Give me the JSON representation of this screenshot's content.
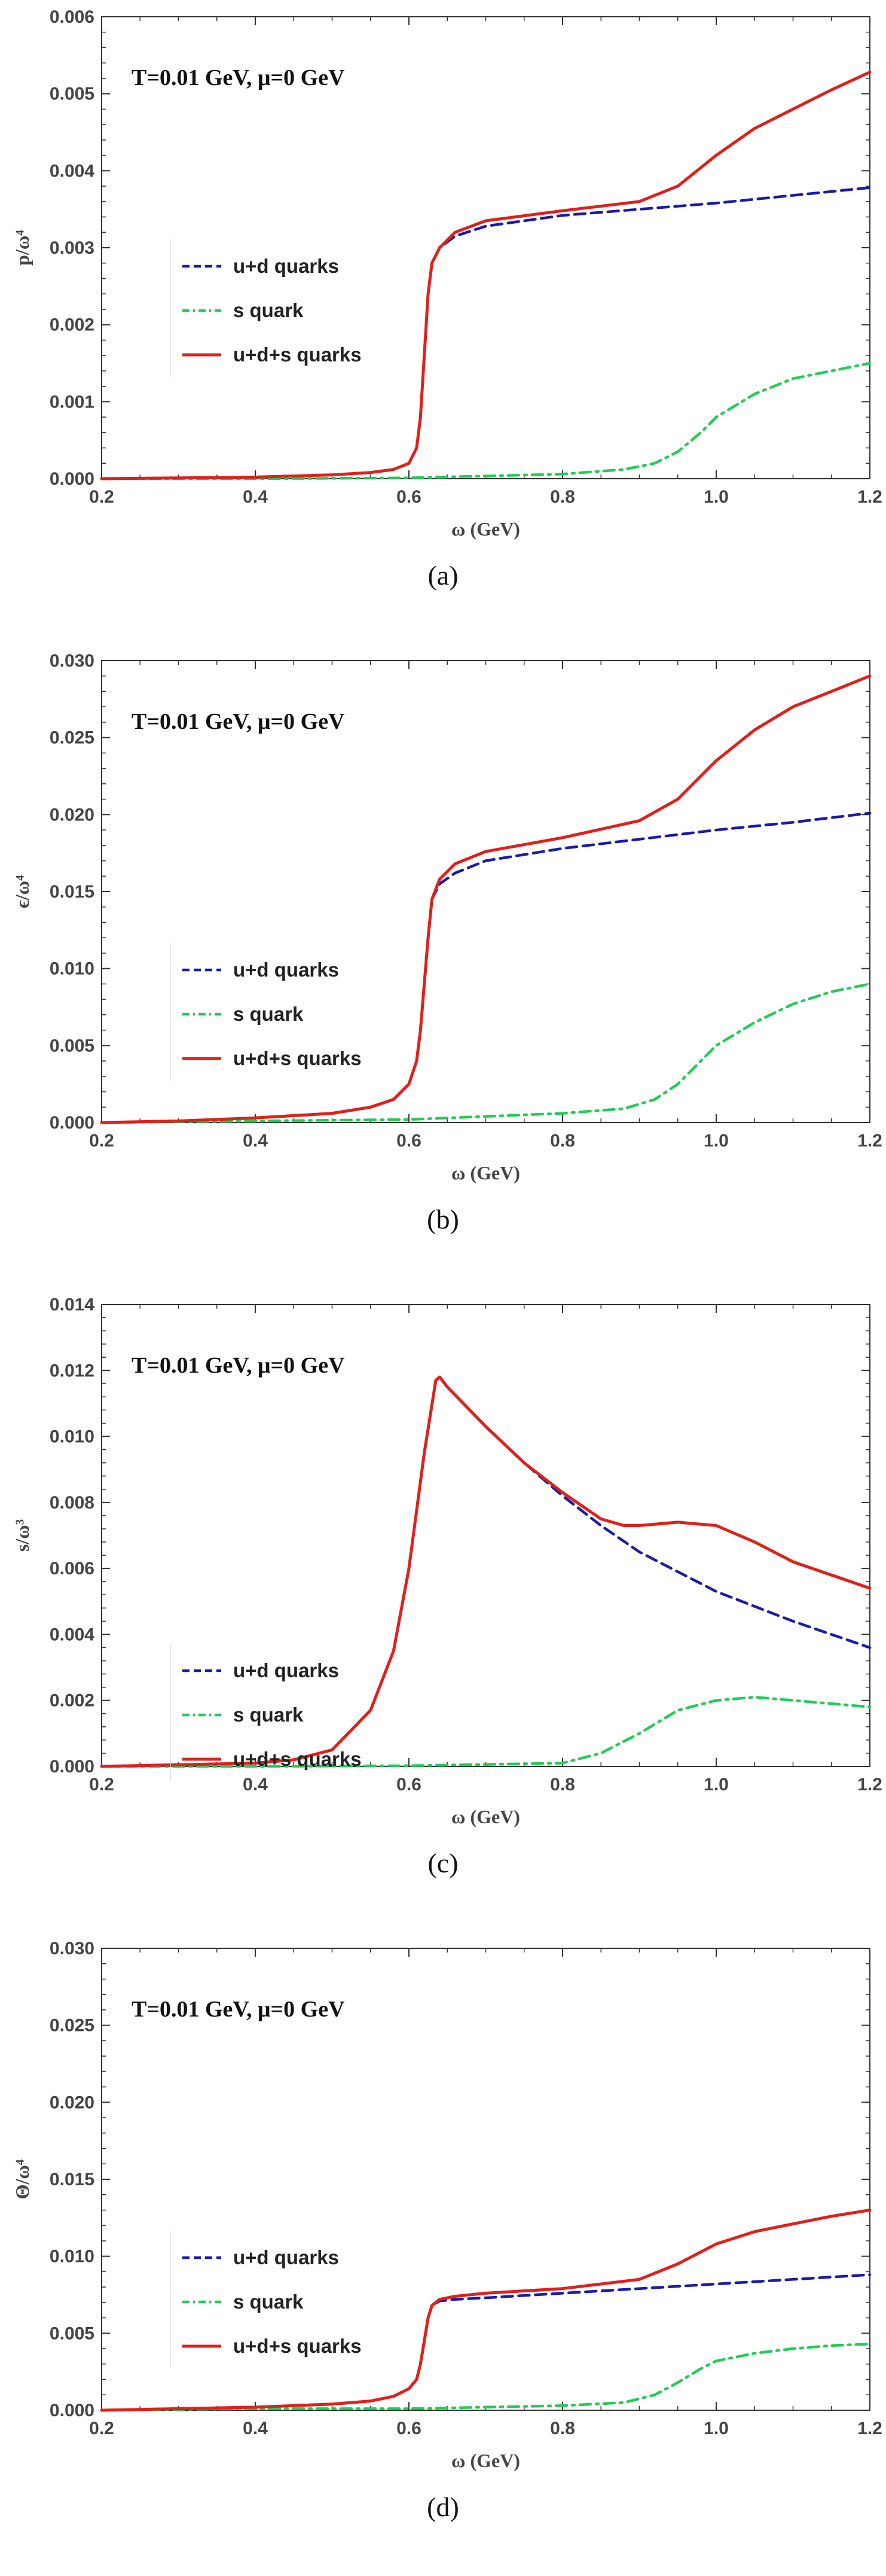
{
  "charts": [
    {
      "chart_data": {
        "type": "line",
        "title": "",
        "annotation": "T=0.01 GeV, μ=0 GeV",
        "xlabel": "ω (GeV)",
        "ylabel": "p/ω⁴",
        "xlim": [
          0.2,
          1.2
        ],
        "ylim": [
          0,
          0.006
        ],
        "xticks": [
          "0.2",
          "0.4",
          "0.6",
          "0.8",
          "1.0",
          "1.2"
        ],
        "yticks": [
          "0.000",
          "0.001",
          "0.002",
          "0.003",
          "0.004",
          "0.005",
          "0.006"
        ],
        "grid": false,
        "legend": "center-left",
        "caption": "(a)",
        "series": [
          {
            "name": "u+d quarks",
            "color": "#1a1aa8",
            "style": "dashed",
            "x": [
              0.2,
              0.3,
              0.4,
              0.5,
              0.55,
              0.58,
              0.6,
              0.61,
              0.615,
              0.62,
              0.625,
              0.63,
              0.64,
              0.66,
              0.7,
              0.8,
              0.9,
              1.0,
              1.1,
              1.2
            ],
            "y": [
              0.0,
              1e-05,
              2e-05,
              5e-05,
              8e-05,
              0.00012,
              0.0002,
              0.0004,
              0.0008,
              0.0016,
              0.0024,
              0.0028,
              0.003,
              0.00315,
              0.00328,
              0.00342,
              0.0035,
              0.00358,
              0.00368,
              0.00378
            ]
          },
          {
            "name": "s quark",
            "color": "#22cc55",
            "style": "dashdot",
            "x": [
              0.2,
              0.4,
              0.6,
              0.8,
              0.88,
              0.92,
              0.95,
              0.98,
              1.0,
              1.05,
              1.1,
              1.15,
              1.2
            ],
            "y": [
              0.0,
              0.0,
              1e-05,
              6e-05,
              0.00012,
              0.0002,
              0.00035,
              0.0006,
              0.0008,
              0.0011,
              0.0013,
              0.0014,
              0.0015
            ]
          },
          {
            "name": "u+d+s quarks",
            "color": "#e0201a",
            "style": "solid",
            "x": [
              0.2,
              0.3,
              0.4,
              0.5,
              0.55,
              0.58,
              0.6,
              0.61,
              0.615,
              0.62,
              0.625,
              0.63,
              0.64,
              0.66,
              0.7,
              0.8,
              0.9,
              0.95,
              1.0,
              1.05,
              1.1,
              1.15,
              1.2
            ],
            "y": [
              0.0,
              1e-05,
              2e-05,
              5e-05,
              8e-05,
              0.00012,
              0.0002,
              0.0004,
              0.0008,
              0.0016,
              0.0024,
              0.0028,
              0.003,
              0.0032,
              0.00335,
              0.00348,
              0.0036,
              0.0038,
              0.0042,
              0.00455,
              0.0048,
              0.00505,
              0.00528
            ]
          }
        ]
      }
    },
    {
      "chart_data": {
        "type": "line",
        "title": "",
        "annotation": "T=0.01 GeV, μ=0 GeV",
        "xlabel": "ω (GeV)",
        "ylabel": "ϵ/ω⁴",
        "xlim": [
          0.2,
          1.2
        ],
        "ylim": [
          0,
          0.03
        ],
        "xticks": [
          "0.2",
          "0.4",
          "0.6",
          "0.8",
          "1.0",
          "1.2"
        ],
        "yticks": [
          "0.000",
          "0.005",
          "0.010",
          "0.015",
          "0.020",
          "0.025",
          "0.030"
        ],
        "grid": false,
        "legend": "center-left",
        "caption": "(b)",
        "series": [
          {
            "name": "u+d quarks",
            "color": "#1a1aa8",
            "style": "dashed",
            "x": [
              0.2,
              0.3,
              0.4,
              0.5,
              0.55,
              0.58,
              0.6,
              0.61,
              0.615,
              0.62,
              0.625,
              0.63,
              0.64,
              0.66,
              0.7,
              0.8,
              0.9,
              1.0,
              1.1,
              1.2
            ],
            "y": [
              0.0,
              0.0001,
              0.0003,
              0.0006,
              0.001,
              0.0015,
              0.0025,
              0.004,
              0.006,
              0.009,
              0.012,
              0.0145,
              0.0155,
              0.0162,
              0.017,
              0.0178,
              0.0184,
              0.019,
              0.0195,
              0.0201
            ]
          },
          {
            "name": "s quark",
            "color": "#22cc55",
            "style": "dashdot",
            "x": [
              0.2,
              0.4,
              0.6,
              0.8,
              0.88,
              0.92,
              0.95,
              0.98,
              1.0,
              1.05,
              1.1,
              1.15,
              1.2
            ],
            "y": [
              0.0,
              0.0001,
              0.0002,
              0.0006,
              0.0009,
              0.0015,
              0.0025,
              0.004,
              0.005,
              0.0065,
              0.0077,
              0.0085,
              0.009
            ]
          },
          {
            "name": "u+d+s quarks",
            "color": "#e0201a",
            "style": "solid",
            "x": [
              0.2,
              0.3,
              0.4,
              0.5,
              0.55,
              0.58,
              0.6,
              0.61,
              0.615,
              0.62,
              0.625,
              0.63,
              0.64,
              0.66,
              0.7,
              0.8,
              0.9,
              0.95,
              1.0,
              1.05,
              1.1,
              1.15,
              1.2
            ],
            "y": [
              0.0,
              0.0001,
              0.0003,
              0.0006,
              0.001,
              0.0015,
              0.0025,
              0.004,
              0.006,
              0.009,
              0.012,
              0.0145,
              0.0158,
              0.0168,
              0.0176,
              0.0185,
              0.0196,
              0.021,
              0.0235,
              0.0255,
              0.027,
              0.028,
              0.029
            ]
          }
        ]
      }
    },
    {
      "chart_data": {
        "type": "line",
        "title": "",
        "annotation": "T=0.01 GeV, μ=0 GeV",
        "xlabel": "ω (GeV)",
        "ylabel": "s/ω³",
        "xlim": [
          0.2,
          1.2
        ],
        "ylim": [
          0,
          0.014
        ],
        "xticks": [
          "0.2",
          "0.4",
          "0.6",
          "0.8",
          "1.0",
          "1.2"
        ],
        "yticks": [
          "0.000",
          "0.002",
          "0.004",
          "0.006",
          "0.008",
          "0.010",
          "0.012",
          "0.014"
        ],
        "grid": false,
        "legend": "center-left",
        "caption": "(c)",
        "series": [
          {
            "name": "u+d quarks",
            "color": "#1a1aa8",
            "style": "dashed",
            "x": [
              0.2,
              0.3,
              0.4,
              0.45,
              0.5,
              0.55,
              0.58,
              0.6,
              0.62,
              0.635,
              0.64,
              0.65,
              0.7,
              0.75,
              0.8,
              0.85,
              0.9,
              1.0,
              1.1,
              1.2
            ],
            "y": [
              0.0,
              5e-05,
              0.0001,
              0.0002,
              0.0005,
              0.0017,
              0.0035,
              0.006,
              0.0095,
              0.0117,
              0.0118,
              0.0115,
              0.0103,
              0.0092,
              0.0082,
              0.0073,
              0.0065,
              0.0053,
              0.0044,
              0.0036
            ]
          },
          {
            "name": "s quark",
            "color": "#22cc55",
            "style": "dashdot",
            "x": [
              0.2,
              0.4,
              0.6,
              0.8,
              0.85,
              0.9,
              0.95,
              1.0,
              1.05,
              1.1,
              1.15,
              1.2
            ],
            "y": [
              0.0,
              0.0,
              2e-05,
              0.0001,
              0.0004,
              0.001,
              0.0017,
              0.002,
              0.0021,
              0.002,
              0.0019,
              0.0018
            ]
          },
          {
            "name": "u+d+s quarks",
            "color": "#e0201a",
            "style": "solid",
            "x": [
              0.2,
              0.3,
              0.4,
              0.45,
              0.5,
              0.55,
              0.58,
              0.6,
              0.62,
              0.635,
              0.64,
              0.65,
              0.7,
              0.75,
              0.8,
              0.85,
              0.88,
              0.9,
              0.95,
              1.0,
              1.05,
              1.1,
              1.15,
              1.2
            ],
            "y": [
              0.0,
              5e-05,
              0.0001,
              0.0002,
              0.0005,
              0.0017,
              0.0035,
              0.006,
              0.0095,
              0.0117,
              0.0118,
              0.0115,
              0.0103,
              0.0092,
              0.0083,
              0.0075,
              0.0073,
              0.0073,
              0.0074,
              0.0073,
              0.0068,
              0.0062,
              0.0058,
              0.0054
            ]
          }
        ]
      }
    },
    {
      "chart_data": {
        "type": "line",
        "title": "",
        "annotation": "T=0.01 GeV, μ=0 GeV",
        "xlabel": "ω (GeV)",
        "ylabel": "Θ/ω⁴",
        "xlim": [
          0.2,
          1.2
        ],
        "ylim": [
          0,
          0.03
        ],
        "xticks": [
          "0.2",
          "0.4",
          "0.6",
          "0.8",
          "1.0",
          "1.2"
        ],
        "yticks": [
          "0.000",
          "0.005",
          "0.010",
          "0.015",
          "0.020",
          "0.025",
          "0.030"
        ],
        "grid": false,
        "legend": "center-left",
        "caption": "(d)",
        "series": [
          {
            "name": "u+d quarks",
            "color": "#1a1aa8",
            "style": "dashed",
            "x": [
              0.2,
              0.3,
              0.4,
              0.5,
              0.55,
              0.58,
              0.6,
              0.61,
              0.615,
              0.62,
              0.625,
              0.63,
              0.64,
              0.66,
              0.7,
              0.8,
              0.9,
              1.0,
              1.1,
              1.2
            ],
            "y": [
              0.0,
              0.0001,
              0.0002,
              0.0004,
              0.0006,
              0.0009,
              0.0014,
              0.002,
              0.003,
              0.0045,
              0.006,
              0.0068,
              0.0071,
              0.0072,
              0.0073,
              0.0076,
              0.0079,
              0.0082,
              0.0085,
              0.0088
            ]
          },
          {
            "name": "s quark",
            "color": "#22cc55",
            "style": "dashdot",
            "x": [
              0.2,
              0.4,
              0.6,
              0.8,
              0.88,
              0.92,
              0.95,
              0.98,
              1.0,
              1.05,
              1.1,
              1.15,
              1.2
            ],
            "y": [
              0.0,
              0.0001,
              0.0001,
              0.0003,
              0.0005,
              0.001,
              0.0018,
              0.0027,
              0.0032,
              0.0037,
              0.004,
              0.0042,
              0.0043
            ]
          },
          {
            "name": "u+d+s quarks",
            "color": "#e0201a",
            "style": "solid",
            "x": [
              0.2,
              0.3,
              0.4,
              0.5,
              0.55,
              0.58,
              0.6,
              0.61,
              0.615,
              0.62,
              0.625,
              0.63,
              0.64,
              0.66,
              0.7,
              0.8,
              0.9,
              0.95,
              1.0,
              1.05,
              1.1,
              1.15,
              1.2
            ],
            "y": [
              0.0,
              0.0001,
              0.0002,
              0.0004,
              0.0006,
              0.0009,
              0.0014,
              0.002,
              0.003,
              0.0045,
              0.006,
              0.0068,
              0.0072,
              0.0074,
              0.0076,
              0.0079,
              0.0085,
              0.0095,
              0.0108,
              0.0116,
              0.0121,
              0.0126,
              0.013
            ]
          }
        ]
      }
    }
  ]
}
